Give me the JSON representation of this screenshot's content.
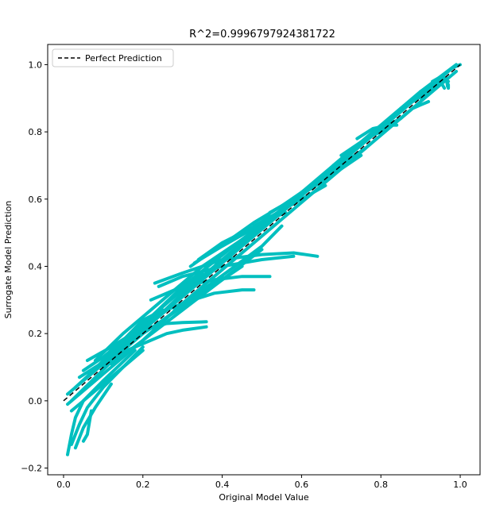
{
  "chart_data": {
    "type": "scatter",
    "title": "R^2=0.9996797924381722",
    "xlabel": "Original Model Value",
    "ylabel": "Surrogate Model Prediction",
    "xlim": [
      -0.04,
      1.05
    ],
    "ylim": [
      -0.22,
      1.06
    ],
    "xticks": [
      0.0,
      0.2,
      0.4,
      0.6,
      0.8,
      1.0
    ],
    "xtick_labels": [
      "0.0",
      "0.2",
      "0.4",
      "0.6",
      "0.8",
      "1.0"
    ],
    "yticks": [
      -0.2,
      0.0,
      0.2,
      0.4,
      0.6,
      0.8,
      1.0
    ],
    "ytick_labels": [
      "−0.2",
      "0.0",
      "0.2",
      "0.4",
      "0.6",
      "0.8",
      "1.0"
    ],
    "legend": {
      "placement": "top-left",
      "entries": [
        {
          "label": "Perfect Prediction",
          "style": "dashed",
          "color": "#000000"
        }
      ]
    },
    "reference_line": {
      "x": [
        0.0,
        1.0
      ],
      "y": [
        0.0,
        1.0
      ],
      "color": "#000000",
      "style": "dashed"
    },
    "series": [
      {
        "color": "#00bfbf",
        "curves": [
          [
            [
              0.01,
              0.02
            ],
            [
              0.1,
              0.11
            ],
            [
              0.2,
              0.21
            ],
            [
              0.3,
              0.31
            ],
            [
              0.4,
              0.41
            ],
            [
              0.5,
              0.51
            ],
            [
              0.6,
              0.61
            ],
            [
              0.7,
              0.71
            ],
            [
              0.8,
              0.81
            ],
            [
              0.9,
              0.91
            ],
            [
              0.98,
              0.99
            ]
          ],
          [
            [
              0.01,
              -0.01
            ],
            [
              0.1,
              0.08
            ],
            [
              0.2,
              0.18
            ],
            [
              0.3,
              0.29
            ],
            [
              0.4,
              0.39
            ],
            [
              0.5,
              0.49
            ],
            [
              0.6,
              0.59
            ],
            [
              0.7,
              0.69
            ],
            [
              0.8,
              0.79
            ],
            [
              0.9,
              0.89
            ],
            [
              0.99,
              0.98
            ]
          ],
          [
            [
              0.02,
              0.0
            ],
            [
              0.15,
              0.15
            ],
            [
              0.3,
              0.32
            ],
            [
              0.45,
              0.47
            ],
            [
              0.6,
              0.62
            ],
            [
              0.75,
              0.77
            ],
            [
              0.9,
              0.92
            ],
            [
              0.99,
              1.0
            ]
          ],
          [
            [
              0.03,
              0.04
            ],
            [
              0.15,
              0.17
            ],
            [
              0.3,
              0.34
            ],
            [
              0.45,
              0.48
            ],
            [
              0.55,
              0.57
            ]
          ],
          [
            [
              0.05,
              0.06
            ],
            [
              0.15,
              0.18
            ],
            [
              0.25,
              0.28
            ],
            [
              0.35,
              0.38
            ]
          ],
          [
            [
              0.01,
              -0.16
            ],
            [
              0.02,
              -0.1
            ],
            [
              0.03,
              -0.05
            ],
            [
              0.05,
              0.0
            ],
            [
              0.1,
              0.06
            ],
            [
              0.18,
              0.15
            ]
          ],
          [
            [
              0.02,
              -0.13
            ],
            [
              0.04,
              -0.07
            ],
            [
              0.06,
              -0.02
            ],
            [
              0.1,
              0.04
            ],
            [
              0.2,
              0.16
            ]
          ],
          [
            [
              0.03,
              -0.14
            ],
            [
              0.05,
              -0.08
            ],
            [
              0.08,
              -0.02
            ],
            [
              0.12,
              0.05
            ]
          ],
          [
            [
              0.02,
              -0.03
            ],
            [
              0.04,
              -0.01
            ],
            [
              0.07,
              0.02
            ],
            [
              0.12,
              0.07
            ],
            [
              0.2,
              0.15
            ]
          ],
          [
            [
              0.05,
              -0.12
            ],
            [
              0.06,
              -0.1
            ],
            [
              0.07,
              -0.03
            ]
          ],
          [
            [
              0.06,
              0.12
            ],
            [
              0.12,
              0.16
            ],
            [
              0.2,
              0.22
            ],
            [
              0.3,
              0.31
            ]
          ],
          [
            [
              0.08,
              0.12
            ],
            [
              0.15,
              0.2
            ],
            [
              0.25,
              0.3
            ],
            [
              0.35,
              0.4
            ],
            [
              0.45,
              0.48
            ],
            [
              0.55,
              0.56
            ]
          ],
          [
            [
              0.15,
              0.17
            ],
            [
              0.2,
              0.21
            ],
            [
              0.26,
              0.23
            ],
            [
              0.3,
              0.233
            ],
            [
              0.36,
              0.235
            ]
          ],
          [
            [
              0.14,
              0.14
            ],
            [
              0.2,
              0.17
            ],
            [
              0.26,
              0.2
            ],
            [
              0.3,
              0.21
            ],
            [
              0.36,
              0.22
            ]
          ],
          [
            [
              0.2,
              0.24
            ],
            [
              0.3,
              0.29
            ],
            [
              0.38,
              0.32
            ],
            [
              0.45,
              0.33
            ],
            [
              0.48,
              0.33
            ]
          ],
          [
            [
              0.22,
              0.3
            ],
            [
              0.3,
              0.34
            ],
            [
              0.38,
              0.36
            ],
            [
              0.45,
              0.37
            ],
            [
              0.52,
              0.37
            ]
          ],
          [
            [
              0.24,
              0.34
            ],
            [
              0.3,
              0.37
            ],
            [
              0.4,
              0.4
            ],
            [
              0.5,
              0.42
            ],
            [
              0.58,
              0.43
            ]
          ],
          [
            [
              0.23,
              0.35
            ],
            [
              0.3,
              0.38
            ],
            [
              0.4,
              0.42
            ],
            [
              0.5,
              0.435
            ],
            [
              0.58,
              0.44
            ],
            [
              0.64,
              0.43
            ]
          ],
          [
            [
              0.32,
              0.4
            ],
            [
              0.38,
              0.45
            ],
            [
              0.42,
              0.48
            ],
            [
              0.5,
              0.53
            ],
            [
              0.56,
              0.56
            ]
          ],
          [
            [
              0.33,
              0.41
            ],
            [
              0.4,
              0.46
            ],
            [
              0.46,
              0.5
            ],
            [
              0.52,
              0.55
            ]
          ],
          [
            [
              0.34,
              0.42
            ],
            [
              0.4,
              0.47
            ],
            [
              0.45,
              0.5
            ],
            [
              0.5,
              0.53
            ],
            [
              0.55,
              0.56
            ]
          ],
          [
            [
              0.42,
              0.48
            ],
            [
              0.48,
              0.53
            ],
            [
              0.55,
              0.58
            ],
            [
              0.6,
              0.62
            ],
            [
              0.65,
              0.66
            ]
          ],
          [
            [
              0.48,
              0.52
            ],
            [
              0.54,
              0.56
            ],
            [
              0.6,
              0.6
            ],
            [
              0.66,
              0.64
            ]
          ],
          [
            [
              0.52,
              0.56
            ],
            [
              0.58,
              0.6
            ],
            [
              0.65,
              0.65
            ],
            [
              0.7,
              0.69
            ],
            [
              0.75,
              0.73
            ]
          ],
          [
            [
              0.6,
              0.62
            ],
            [
              0.65,
              0.66
            ],
            [
              0.7,
              0.7
            ],
            [
              0.75,
              0.74
            ]
          ],
          [
            [
              0.68,
              0.69
            ],
            [
              0.72,
              0.72
            ],
            [
              0.76,
              0.75
            ]
          ],
          [
            [
              0.7,
              0.73
            ],
            [
              0.75,
              0.77
            ],
            [
              0.8,
              0.81
            ],
            [
              0.85,
              0.84
            ]
          ],
          [
            [
              0.68,
              0.7
            ],
            [
              0.73,
              0.75
            ],
            [
              0.78,
              0.79
            ],
            [
              0.8,
              0.8
            ]
          ],
          [
            [
              0.74,
              0.78
            ],
            [
              0.78,
              0.81
            ],
            [
              0.82,
              0.82
            ],
            [
              0.84,
              0.82
            ]
          ],
          [
            [
              0.8,
              0.8
            ],
            [
              0.85,
              0.84
            ],
            [
              0.88,
              0.87
            ],
            [
              0.9,
              0.88
            ],
            [
              0.92,
              0.89
            ]
          ],
          [
            [
              0.85,
              0.87
            ],
            [
              0.9,
              0.91
            ],
            [
              0.93,
              0.94
            ],
            [
              0.95,
              0.96
            ],
            [
              0.97,
              0.95
            ]
          ],
          [
            [
              0.88,
              0.89
            ],
            [
              0.92,
              0.92
            ],
            [
              0.95,
              0.95
            ],
            [
              0.96,
              0.93
            ]
          ],
          [
            [
              0.9,
              0.92
            ],
            [
              0.93,
              0.94
            ],
            [
              0.96,
              0.96
            ],
            [
              0.97,
              0.94
            ],
            [
              0.97,
              0.93
            ]
          ],
          [
            [
              0.93,
              0.95
            ],
            [
              0.96,
              0.97
            ],
            [
              0.98,
              0.99
            ],
            [
              1.0,
              1.0
            ]
          ],
          [
            [
              0.9,
              0.9
            ],
            [
              0.93,
              0.93
            ],
            [
              0.95,
              0.95
            ],
            [
              0.965,
              0.96
            ],
            [
              0.968,
              0.935
            ]
          ],
          [
            [
              0.05,
              0.09
            ],
            [
              0.1,
              0.13
            ],
            [
              0.15,
              0.18
            ],
            [
              0.2,
              0.24
            ],
            [
              0.25,
              0.27
            ]
          ],
          [
            [
              0.04,
              0.07
            ],
            [
              0.08,
              0.1
            ],
            [
              0.12,
              0.13
            ],
            [
              0.18,
              0.18
            ]
          ],
          [
            [
              0.1,
              0.1
            ],
            [
              0.2,
              0.2
            ],
            [
              0.3,
              0.28
            ],
            [
              0.4,
              0.37
            ]
          ],
          [
            [
              0.12,
              0.11
            ],
            [
              0.2,
              0.18
            ],
            [
              0.3,
              0.27
            ],
            [
              0.4,
              0.36
            ],
            [
              0.5,
              0.45
            ]
          ],
          [
            [
              0.25,
              0.24
            ],
            [
              0.32,
              0.3
            ],
            [
              0.4,
              0.36
            ],
            [
              0.45,
              0.4
            ]
          ],
          [
            [
              0.28,
              0.27
            ],
            [
              0.35,
              0.33
            ],
            [
              0.42,
              0.39
            ],
            [
              0.5,
              0.46
            ],
            [
              0.55,
              0.52
            ]
          ]
        ]
      }
    ]
  }
}
